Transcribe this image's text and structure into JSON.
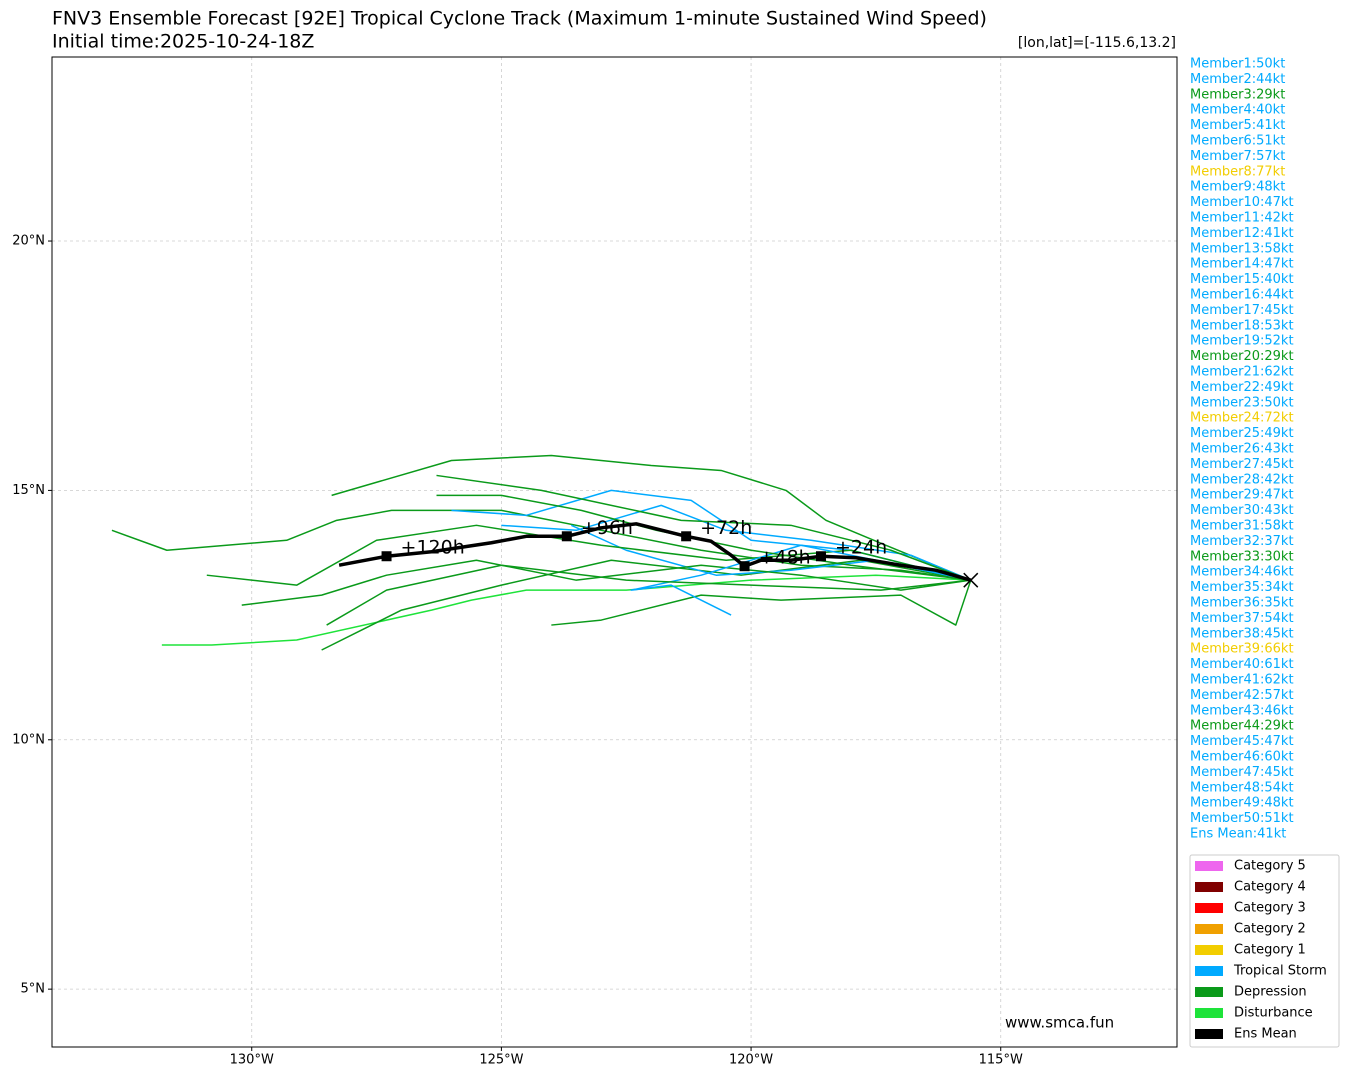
{
  "chart_data": {
    "type": "track",
    "title": "FNV3 Ensemble Forecast [92E] Tropical Cyclone Track (Maximum 1-minute Sustained Wind Speed)",
    "subtitle": "Initial time:2025-10-24-18Z",
    "position_note": "[lon,lat]=[-115.6,13.2]",
    "source": "www.smca.fun",
    "xlim": [
      -134.0,
      -111.47
    ],
    "ylim": [
      3.84,
      23.69
    ],
    "xticks": [
      {
        "value": -130,
        "label": "130°W"
      },
      {
        "value": -125,
        "label": "125°W"
      },
      {
        "value": -120,
        "label": "120°W"
      },
      {
        "value": -115,
        "label": "115°W"
      }
    ],
    "yticks": [
      {
        "value": 5,
        "label": "5°N"
      },
      {
        "value": 10,
        "label": "10°N"
      },
      {
        "value": 15,
        "label": "15°N"
      },
      {
        "value": 20,
        "label": "20°N"
      }
    ],
    "grid": true,
    "initial": {
      "lon": -115.6,
      "lat": 13.2
    },
    "tracks": [
      {
        "color": "#0a9a1a",
        "lon": [
          -115.6,
          -117,
          -119,
          -121,
          -123,
          -125,
          -127.2,
          -128.3,
          -129.3,
          -131.7,
          -132.8
        ],
        "lat": [
          13.2,
          13.4,
          13.5,
          13.8,
          14.2,
          14.6,
          14.6,
          14.4,
          14.0,
          13.8,
          14.2
        ]
      },
      {
        "color": "#1ee33a",
        "lon": [
          -115.6,
          -117.5,
          -120,
          -122.5,
          -124.5,
          -125.6,
          -126.4,
          -129.1,
          -130.8,
          -131.8
        ],
        "lat": [
          13.2,
          13.3,
          13.2,
          13.0,
          13.0,
          12.8,
          12.6,
          12.0,
          11.9,
          11.9
        ]
      },
      {
        "color": "#0a9a1a",
        "lon": [
          -115.6,
          -117.8,
          -120.2,
          -122.8,
          -125,
          -127,
          -128.6
        ],
        "lat": [
          13.2,
          13.6,
          13.3,
          13.6,
          13.1,
          12.6,
          11.8
        ]
      },
      {
        "color": "#0a9a1a",
        "lon": [
          -115.6,
          -117.3,
          -118.5,
          -119.3,
          -120.6,
          -122.0,
          -124.0,
          -126.0,
          -128.4
        ],
        "lat": [
          13.2,
          13.9,
          14.4,
          15.0,
          15.4,
          15.5,
          15.7,
          15.6,
          14.9
        ]
      },
      {
        "color": "#00aaff",
        "lon": [
          -115.6,
          -118,
          -120,
          -121.2,
          -122.8,
          -124.5,
          -126
        ],
        "lat": [
          13.2,
          13.8,
          14.0,
          14.8,
          15.0,
          14.5,
          14.6
        ]
      },
      {
        "color": "#00aaff",
        "lon": [
          -115.6,
          -117.5,
          -119.2,
          -120.7,
          -122.5,
          -123.6
        ],
        "lat": [
          13.2,
          13.6,
          13.4,
          13.3,
          13.8,
          14.3
        ]
      },
      {
        "color": "#0a9a1a",
        "lon": [
          -115.6,
          -115.9,
          -117,
          -119.4,
          -121,
          -123,
          -124
        ],
        "lat": [
          13.2,
          12.3,
          12.9,
          12.8,
          12.9,
          12.4,
          12.3
        ]
      },
      {
        "color": "#0a9a1a",
        "lon": [
          -115.6,
          -117,
          -119,
          -121,
          -123.5,
          -125.5,
          -127.3,
          -128.6,
          -130.2
        ],
        "lat": [
          13.2,
          13.0,
          13.3,
          13.5,
          13.2,
          13.6,
          13.3,
          12.9,
          12.7
        ]
      },
      {
        "color": "#0a9a1a",
        "lon": [
          -115.6,
          -118,
          -120.5,
          -123,
          -125.5,
          -127.5,
          -129.1,
          -130.9
        ],
        "lat": [
          13.2,
          13.8,
          13.6,
          13.9,
          14.3,
          14.0,
          13.1,
          13.3
        ]
      },
      {
        "color": "#00aaff",
        "lon": [
          -115.6,
          -117,
          -119,
          -121,
          -122.4,
          -121.6,
          -120.4
        ],
        "lat": [
          13.2,
          13.5,
          13.9,
          13.3,
          13.0,
          13.1,
          12.5
        ]
      },
      {
        "color": "#0a9a1a",
        "lon": [
          -115.6,
          -117.4,
          -120.0,
          -122.5,
          -125,
          -127.3,
          -128.5
        ],
        "lat": [
          13.2,
          13.0,
          13.1,
          13.2,
          13.5,
          13.0,
          12.3
        ]
      },
      {
        "color": "#00aaff",
        "lon": [
          -115.6,
          -116.8,
          -118.8,
          -120.5,
          -121.8,
          -123.5,
          -125.0
        ],
        "lat": [
          13.2,
          13.7,
          14.0,
          14.2,
          14.7,
          14.2,
          14.3
        ]
      },
      {
        "color": "#0a9a1a",
        "lon": [
          -115.6,
          -118,
          -120,
          -121.9,
          -123.4,
          -125,
          -126.3
        ],
        "lat": [
          13.2,
          13.5,
          13.8,
          14.2,
          14.6,
          14.9,
          14.9
        ]
      },
      {
        "color": "#0a9a1a",
        "lon": [
          -115.6,
          -117.2,
          -119.2,
          -121.4,
          -124.2,
          -126.3
        ],
        "lat": [
          13.2,
          13.8,
          14.3,
          14.4,
          15.0,
          15.3
        ]
      }
    ],
    "mean_track": {
      "color": "#000000",
      "lon": [
        -115.6,
        -116.3,
        -117.0,
        -117.9,
        -118.6,
        -119.2,
        -119.8,
        -120.13,
        -120.4,
        -120.8,
        -121.3,
        -122.3,
        -123.0,
        -123.69,
        -124.5,
        -125.2,
        -126.4,
        -127.3,
        -128.25
      ],
      "lat": [
        13.2,
        13.4,
        13.5,
        13.65,
        13.68,
        13.6,
        13.6,
        13.48,
        13.7,
        13.98,
        14.08,
        14.33,
        14.25,
        14.08,
        14.08,
        13.95,
        13.77,
        13.68,
        13.5
      ]
    },
    "time_labels": [
      {
        "label": "+24h",
        "lon": -118.6,
        "lat": 13.68
      },
      {
        "label": "+48h",
        "lon": -120.13,
        "lat": 13.48
      },
      {
        "label": "+72h",
        "lon": -121.3,
        "lat": 14.08
      },
      {
        "label": "+96h",
        "lon": -123.69,
        "lat": 14.08
      },
      {
        "label": "+120h",
        "lon": -127.3,
        "lat": 13.68
      }
    ],
    "member_labels": [
      "Member1:50kt",
      "Member2:44kt",
      "Member3:29kt",
      "Member4:40kt",
      "Member5:41kt",
      "Member6:51kt",
      "Member7:57kt",
      "Member8:77kt",
      "Member9:48kt",
      "Member10:47kt",
      "Member11:42kt",
      "Member12:41kt",
      "Member13:58kt",
      "Member14:47kt",
      "Member15:40kt",
      "Member16:44kt",
      "Member17:45kt",
      "Member18:53kt",
      "Member19:52kt",
      "Member20:29kt",
      "Member21:62kt",
      "Member22:49kt",
      "Member23:50kt",
      "Member24:72kt",
      "Member25:49kt",
      "Member26:43kt",
      "Member27:45kt",
      "Member28:42kt",
      "Member29:47kt",
      "Member30:43kt",
      "Member31:58kt",
      "Member32:37kt",
      "Member33:30kt",
      "Member34:46kt",
      "Member35:34kt",
      "Member36:35kt",
      "Member37:54kt",
      "Member38:45kt",
      "Member39:66kt",
      "Member40:61kt",
      "Member41:62kt",
      "Member42:57kt",
      "Member43:46kt",
      "Member44:29kt",
      "Member45:47kt",
      "Member46:60kt",
      "Member47:45kt",
      "Member48:54kt",
      "Member49:48kt",
      "Member50:51kt",
      "Ens Mean:41kt"
    ],
    "member_colors": [
      "#00aaff",
      "#00aaff",
      "#0a9a1a",
      "#00aaff",
      "#00aaff",
      "#00aaff",
      "#00aaff",
      "#f2cd00",
      "#00aaff",
      "#00aaff",
      "#00aaff",
      "#00aaff",
      "#00aaff",
      "#00aaff",
      "#00aaff",
      "#00aaff",
      "#00aaff",
      "#00aaff",
      "#00aaff",
      "#0a9a1a",
      "#00aaff",
      "#00aaff",
      "#00aaff",
      "#f2cd00",
      "#00aaff",
      "#00aaff",
      "#00aaff",
      "#00aaff",
      "#00aaff",
      "#00aaff",
      "#00aaff",
      "#00aaff",
      "#0a9a1a",
      "#00aaff",
      "#00aaff",
      "#00aaff",
      "#00aaff",
      "#00aaff",
      "#f2cd00",
      "#00aaff",
      "#00aaff",
      "#00aaff",
      "#00aaff",
      "#0a9a1a",
      "#00aaff",
      "#00aaff",
      "#00aaff",
      "#00aaff",
      "#00aaff",
      "#00aaff",
      "#00aaff"
    ],
    "legend": [
      {
        "name": "Category 5",
        "color": "#ee66ee"
      },
      {
        "name": "Category 4",
        "color": "#800000"
      },
      {
        "name": "Category 3",
        "color": "#ff0000"
      },
      {
        "name": "Category 2",
        "color": "#f0a000"
      },
      {
        "name": "Category 1",
        "color": "#f2cd00"
      },
      {
        "name": "Tropical Storm",
        "color": "#00aaff"
      },
      {
        "name": "Depression",
        "color": "#0a9a1a"
      },
      {
        "name": "Disturbance",
        "color": "#1ee33a"
      },
      {
        "name": "Ens Mean",
        "color": "#000000"
      }
    ]
  }
}
